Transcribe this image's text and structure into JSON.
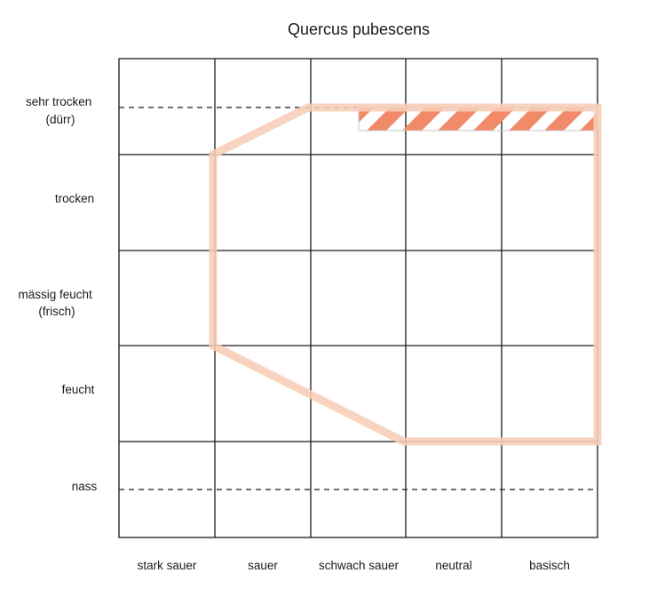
{
  "diagram": {
    "title": "Quercus pubescens",
    "y_axis": {
      "rows": [
        {
          "lines": [
            "sehr trocken",
            "(dürr)"
          ]
        },
        {
          "lines": [
            "trocken"
          ]
        },
        {
          "lines": [
            "mässig feucht",
            "(frisch)"
          ]
        },
        {
          "lines": [
            "feucht"
          ]
        },
        {
          "lines": [
            "nass"
          ]
        }
      ]
    },
    "x_axis": {
      "columns": [
        "stark sauer",
        "sauer",
        "schwach sauer",
        "neutral",
        "basisch"
      ]
    },
    "colors": {
      "grid": "#1a1a1a",
      "range_outline": "#f7cdb7",
      "optimum_hatch": "#f08a68",
      "hatch_border": "#c8c8c8"
    }
  }
}
